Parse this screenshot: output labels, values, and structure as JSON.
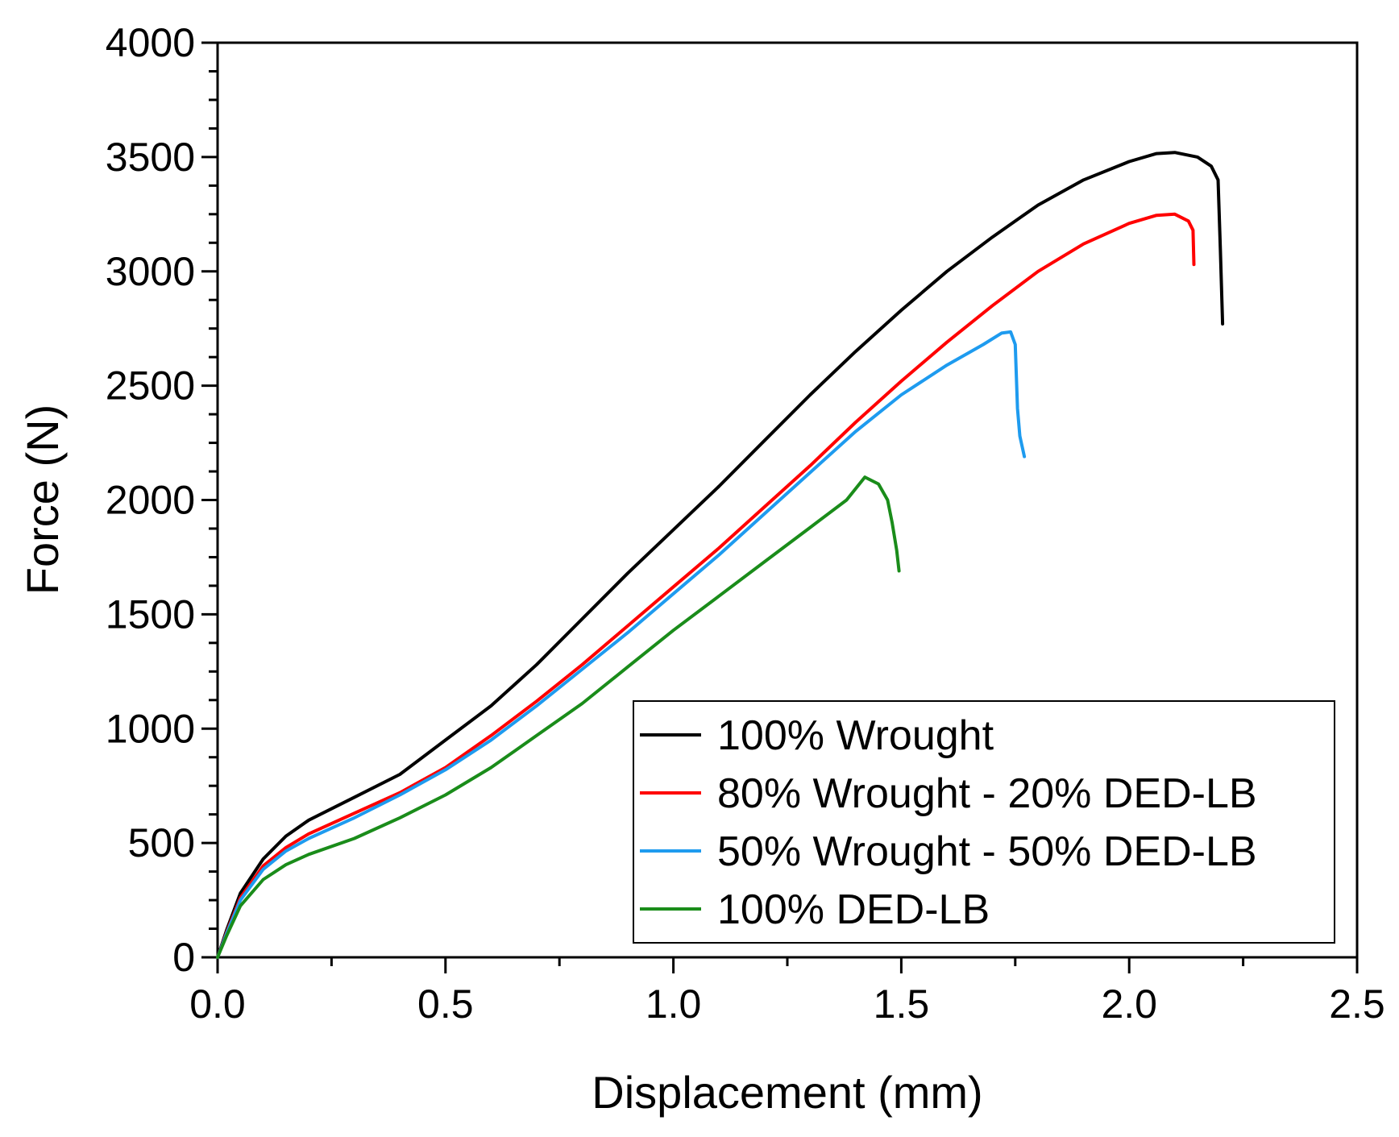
{
  "chart_data": {
    "type": "line",
    "xlabel": "Displacement (mm)",
    "ylabel": "Force (N)",
    "xlim": [
      0,
      2.5
    ],
    "ylim": [
      0,
      4000
    ],
    "x_ticks": [
      "0.0",
      "0.5",
      "1.0",
      "1.5",
      "2.0",
      "2.5"
    ],
    "y_ticks": [
      "0",
      "500",
      "1000",
      "1500",
      "2000",
      "2500",
      "3000",
      "3500",
      "4000"
    ],
    "grid": false,
    "legend_position": "bottom-right",
    "series": [
      {
        "name": "100% Wrought",
        "color": "#000000",
        "points": [
          [
            0,
            0
          ],
          [
            0.02,
            120
          ],
          [
            0.05,
            280
          ],
          [
            0.1,
            430
          ],
          [
            0.15,
            530
          ],
          [
            0.2,
            600
          ],
          [
            0.3,
            700
          ],
          [
            0.4,
            800
          ],
          [
            0.5,
            950
          ],
          [
            0.6,
            1100
          ],
          [
            0.7,
            1280
          ],
          [
            0.8,
            1480
          ],
          [
            0.9,
            1680
          ],
          [
            1.0,
            1870
          ],
          [
            1.1,
            2060
          ],
          [
            1.2,
            2260
          ],
          [
            1.3,
            2460
          ],
          [
            1.4,
            2650
          ],
          [
            1.5,
            2830
          ],
          [
            1.6,
            3000
          ],
          [
            1.7,
            3150
          ],
          [
            1.8,
            3290
          ],
          [
            1.9,
            3400
          ],
          [
            2.0,
            3480
          ],
          [
            2.06,
            3515
          ],
          [
            2.1,
            3520
          ],
          [
            2.15,
            3500
          ],
          [
            2.18,
            3460
          ],
          [
            2.195,
            3400
          ],
          [
            2.2,
            3100
          ],
          [
            2.205,
            2770
          ]
        ]
      },
      {
        "name": "80% Wrought - 20% DED-LB",
        "color": "#ff0000",
        "points": [
          [
            0,
            0
          ],
          [
            0.02,
            110
          ],
          [
            0.05,
            260
          ],
          [
            0.1,
            400
          ],
          [
            0.15,
            480
          ],
          [
            0.2,
            540
          ],
          [
            0.3,
            630
          ],
          [
            0.4,
            720
          ],
          [
            0.5,
            830
          ],
          [
            0.6,
            970
          ],
          [
            0.7,
            1120
          ],
          [
            0.8,
            1280
          ],
          [
            0.9,
            1450
          ],
          [
            1.0,
            1620
          ],
          [
            1.1,
            1790
          ],
          [
            1.2,
            1970
          ],
          [
            1.3,
            2150
          ],
          [
            1.4,
            2340
          ],
          [
            1.5,
            2520
          ],
          [
            1.6,
            2690
          ],
          [
            1.7,
            2850
          ],
          [
            1.8,
            3000
          ],
          [
            1.9,
            3120
          ],
          [
            2.0,
            3210
          ],
          [
            2.06,
            3245
          ],
          [
            2.1,
            3250
          ],
          [
            2.13,
            3220
          ],
          [
            2.14,
            3180
          ],
          [
            2.142,
            3030
          ]
        ]
      },
      {
        "name": "50% Wrought - 50% DED-LB",
        "color": "#1e9bef",
        "points": [
          [
            0,
            0
          ],
          [
            0.02,
            105
          ],
          [
            0.05,
            250
          ],
          [
            0.1,
            385
          ],
          [
            0.15,
            465
          ],
          [
            0.2,
            520
          ],
          [
            0.3,
            610
          ],
          [
            0.4,
            710
          ],
          [
            0.5,
            820
          ],
          [
            0.6,
            950
          ],
          [
            0.7,
            1100
          ],
          [
            0.8,
            1260
          ],
          [
            0.9,
            1420
          ],
          [
            1.0,
            1590
          ],
          [
            1.1,
            1760
          ],
          [
            1.2,
            1940
          ],
          [
            1.3,
            2120
          ],
          [
            1.4,
            2300
          ],
          [
            1.5,
            2460
          ],
          [
            1.6,
            2590
          ],
          [
            1.68,
            2680
          ],
          [
            1.72,
            2730
          ],
          [
            1.74,
            2735
          ],
          [
            1.75,
            2680
          ],
          [
            1.755,
            2400
          ],
          [
            1.76,
            2280
          ],
          [
            1.77,
            2190
          ]
        ]
      },
      {
        "name": "100% DED-LB",
        "color": "#1a8c1a",
        "points": [
          [
            0,
            0
          ],
          [
            0.02,
            95
          ],
          [
            0.05,
            225
          ],
          [
            0.1,
            340
          ],
          [
            0.15,
            405
          ],
          [
            0.2,
            450
          ],
          [
            0.3,
            520
          ],
          [
            0.4,
            610
          ],
          [
            0.5,
            710
          ],
          [
            0.6,
            830
          ],
          [
            0.7,
            970
          ],
          [
            0.8,
            1110
          ],
          [
            0.9,
            1270
          ],
          [
            1.0,
            1430
          ],
          [
            1.1,
            1580
          ],
          [
            1.2,
            1730
          ],
          [
            1.3,
            1880
          ],
          [
            1.38,
            2000
          ],
          [
            1.42,
            2100
          ],
          [
            1.45,
            2070
          ],
          [
            1.47,
            2000
          ],
          [
            1.48,
            1900
          ],
          [
            1.49,
            1780
          ],
          [
            1.495,
            1690
          ]
        ]
      }
    ]
  }
}
